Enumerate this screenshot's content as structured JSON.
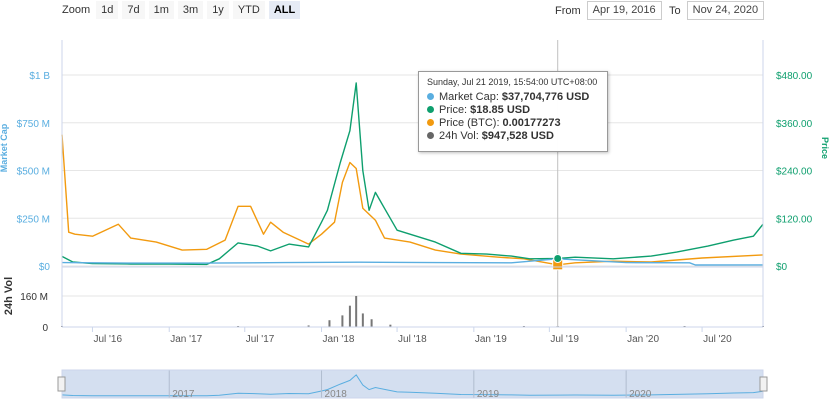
{
  "zoom": {
    "label": "Zoom",
    "buttons": [
      {
        "label": "1d",
        "active": false
      },
      {
        "label": "7d",
        "active": false
      },
      {
        "label": "1m",
        "active": false
      },
      {
        "label": "3m",
        "active": false
      },
      {
        "label": "1y",
        "active": false
      },
      {
        "label": "YTD",
        "active": false
      },
      {
        "label": "ALL",
        "active": true
      }
    ]
  },
  "range": {
    "from_label": "From",
    "from_value": "Apr 19, 2016",
    "to_label": "To",
    "to_value": "Nov 24, 2020"
  },
  "tooltip": {
    "header": "Sunday, Jul 21 2019, 15:54:00 UTC+08:00",
    "rows": [
      {
        "label": "Market Cap:",
        "value": "$37,704,776 USD",
        "color": "#5aaee0"
      },
      {
        "label": "Price:",
        "value": "$18.85 USD",
        "color": "#0e9f6e"
      },
      {
        "label": "Price (BTC):",
        "value": "0.00177273",
        "color": "#f29a0f"
      },
      {
        "label": "24h Vol:",
        "value": "$947,528 USD",
        "color": "#666666"
      }
    ]
  },
  "colors": {
    "market_cap": "#5aaee0",
    "price": "#0e9f6e",
    "price_btc": "#f29a0f",
    "volume": "#777777",
    "nav_fill": "#d4dff0",
    "crosshair": "#c0c0c0"
  },
  "chart_data": {
    "type": "line",
    "x_unit": "date",
    "x_range": [
      "2016-04-19",
      "2020-11-24"
    ],
    "left_axis": {
      "label": "Market Cap",
      "ticks": [
        "$0",
        "$250 M",
        "$500 M",
        "$750 M",
        "$1 B"
      ],
      "range": [
        0,
        1000000000
      ]
    },
    "right_axis": {
      "label": "Price",
      "ticks": [
        "$0",
        "$120.00",
        "$240.00",
        "$360.00",
        "$480.00"
      ],
      "range": [
        0,
        480
      ]
    },
    "volume_axis": {
      "label": "24h Vol",
      "ticks": [
        "0",
        "160 M"
      ],
      "range": [
        0,
        160000000
      ]
    },
    "x_ticks": [
      "Jul '16",
      "Jan '17",
      "Jul '17",
      "Jan '18",
      "Jul '18",
      "Jan '19",
      "Jul '19",
      "Jan '20",
      "Jul '20"
    ],
    "navigator_ticks": [
      "2017",
      "2018",
      "2019",
      "2020"
    ],
    "series": [
      {
        "name": "Market Cap",
        "axis": "left",
        "points": [
          [
            "2016-04-19",
            18000000
          ],
          [
            "2016-10-01",
            15000000
          ],
          [
            "2017-04-01",
            15000000
          ],
          [
            "2017-10-01",
            18000000
          ],
          [
            "2018-04-01",
            20000000
          ],
          [
            "2018-10-01",
            18000000
          ],
          [
            "2019-04-01",
            17000000
          ],
          [
            "2019-07-21",
            37704776
          ],
          [
            "2020-01-01",
            18000000
          ],
          [
            "2020-06-01",
            17000000
          ],
          [
            "2020-06-15",
            5000000
          ],
          [
            "2020-11-24",
            6000000
          ]
        ]
      },
      {
        "name": "Price",
        "axis": "right",
        "points": [
          [
            "2016-04-19",
            24
          ],
          [
            "2016-05-15",
            10
          ],
          [
            "2016-07-01",
            6
          ],
          [
            "2016-10-01",
            5
          ],
          [
            "2017-01-01",
            5
          ],
          [
            "2017-04-01",
            4
          ],
          [
            "2017-05-01",
            18
          ],
          [
            "2017-06-15",
            58
          ],
          [
            "2017-08-01",
            50
          ],
          [
            "2017-09-01",
            38
          ],
          [
            "2017-10-15",
            55
          ],
          [
            "2017-12-01",
            48
          ],
          [
            "2018-01-01",
            110
          ],
          [
            "2018-01-15",
            140
          ],
          [
            "2018-02-15",
            260
          ],
          [
            "2018-03-10",
            340
          ],
          [
            "2018-03-25",
            460
          ],
          [
            "2018-04-10",
            240
          ],
          [
            "2018-04-25",
            140
          ],
          [
            "2018-05-10",
            185
          ],
          [
            "2018-06-01",
            145
          ],
          [
            "2018-07-01",
            90
          ],
          [
            "2018-08-01",
            80
          ],
          [
            "2018-10-01",
            60
          ],
          [
            "2018-12-01",
            32
          ],
          [
            "2019-02-01",
            30
          ],
          [
            "2019-04-01",
            25
          ],
          [
            "2019-05-15",
            18
          ],
          [
            "2019-07-21",
            18.85
          ],
          [
            "2019-09-01",
            22
          ],
          [
            "2019-12-01",
            18
          ],
          [
            "2020-03-01",
            25
          ],
          [
            "2020-05-01",
            35
          ],
          [
            "2020-07-15",
            50
          ],
          [
            "2020-09-15",
            65
          ],
          [
            "2020-11-01",
            75
          ],
          [
            "2020-11-24",
            105
          ]
        ]
      },
      {
        "name": "Price (BTC)",
        "axis": "right",
        "points": [
          [
            "2016-04-19",
            330
          ],
          [
            "2016-05-05",
            85
          ],
          [
            "2016-05-20",
            80
          ],
          [
            "2016-07-01",
            75
          ],
          [
            "2016-09-01",
            105
          ],
          [
            "2016-10-01",
            70
          ],
          [
            "2016-12-01",
            60
          ],
          [
            "2017-02-01",
            40
          ],
          [
            "2017-04-01",
            42
          ],
          [
            "2017-05-15",
            65
          ],
          [
            "2017-06-15",
            150
          ],
          [
            "2017-07-15",
            150
          ],
          [
            "2017-08-15",
            80
          ],
          [
            "2017-09-01",
            110
          ],
          [
            "2017-10-01",
            85
          ],
          [
            "2017-12-01",
            55
          ],
          [
            "2018-01-01",
            80
          ],
          [
            "2018-02-01",
            110
          ],
          [
            "2018-02-20",
            210
          ],
          [
            "2018-03-10",
            260
          ],
          [
            "2018-03-25",
            245
          ],
          [
            "2018-04-10",
            145
          ],
          [
            "2018-05-10",
            115
          ],
          [
            "2018-06-01",
            70
          ],
          [
            "2018-08-01",
            60
          ],
          [
            "2018-10-01",
            40
          ],
          [
            "2018-12-01",
            30
          ],
          [
            "2019-03-01",
            22
          ],
          [
            "2019-05-01",
            18
          ],
          [
            "2019-07-21",
            3
          ],
          [
            "2019-09-01",
            8
          ],
          [
            "2019-12-01",
            12
          ],
          [
            "2020-03-01",
            10
          ],
          [
            "2020-07-01",
            20
          ],
          [
            "2020-11-24",
            28
          ]
        ]
      },
      {
        "name": "24h Vol",
        "axis": "volume",
        "points": [
          [
            "2016-04-19",
            500000
          ],
          [
            "2017-06-15",
            5000000
          ],
          [
            "2017-12-01",
            8000000
          ],
          [
            "2018-01-20",
            35000000
          ],
          [
            "2018-02-20",
            60000000
          ],
          [
            "2018-03-10",
            110000000
          ],
          [
            "2018-03-25",
            160000000
          ],
          [
            "2018-04-10",
            70000000
          ],
          [
            "2018-05-01",
            40000000
          ],
          [
            "2018-06-15",
            12000000
          ],
          [
            "2019-05-01",
            5000000
          ],
          [
            "2019-07-21",
            947528
          ],
          [
            "2020-05-20",
            4000000
          ],
          [
            "2020-11-24",
            2000000
          ]
        ]
      }
    ]
  }
}
